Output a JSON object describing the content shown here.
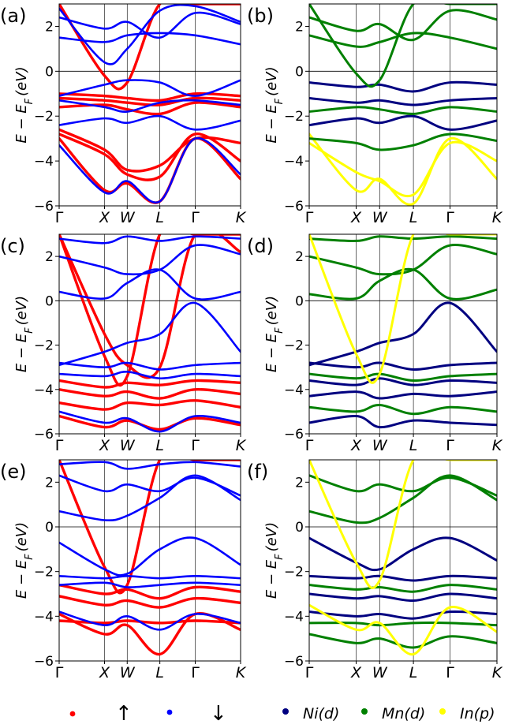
{
  "figure": {
    "legend": [
      {
        "label": "",
        "color": "#ff0000",
        "kind": "marker"
      },
      {
        "label": "↑",
        "color": "",
        "kind": "text"
      },
      {
        "label": "",
        "color": "#0000ff",
        "kind": "marker"
      },
      {
        "label": "↓",
        "color": "",
        "kind": "text"
      },
      {
        "label": "Ni(d)",
        "color": "#000080",
        "kind": "marker"
      },
      {
        "label": "Mn(d)",
        "color": "#008000",
        "kind": "marker"
      },
      {
        "label": "In(p)",
        "color": "#ffff00",
        "kind": "marker"
      }
    ]
  },
  "chart_data": [
    {
      "type": "line",
      "panel": "(a)",
      "style": "spin",
      "ylabel": "E − E_F (eV)",
      "ylim": [
        -6,
        3
      ],
      "yticks": [
        2,
        0,
        -2,
        -4,
        -6
      ],
      "xlim": [
        0,
        1
      ],
      "kpoints": [
        "Γ",
        "X",
        "W",
        "L",
        "Γ",
        "K"
      ],
      "kpos": [
        0.0,
        0.25,
        0.375,
        0.555,
        0.75,
        1.0
      ],
      "series": [
        {
          "name": "up-1",
          "spin": "up",
          "values": [
            -2.6,
            -3.5,
            -4.4,
            -4.2,
            -3.0,
            -3.2
          ]
        },
        {
          "name": "up-2",
          "spin": "up",
          "values": [
            -2.8,
            -3.7,
            -4.6,
            -4.7,
            -2.8,
            -4.0
          ]
        },
        {
          "name": "up-3",
          "spin": "up",
          "values": [
            -1.2,
            -1.3,
            -1.4,
            -1.5,
            -1.2,
            -1.3
          ]
        },
        {
          "name": "up-4",
          "spin": "up",
          "values": [
            -1.0,
            -1.1,
            -1.2,
            -1.3,
            -1.0,
            -1.1
          ]
        },
        {
          "name": "up-5",
          "spin": "up",
          "values": [
            -1.6,
            -1.5,
            -1.7,
            -1.9,
            -1.4,
            -1.6
          ]
        },
        {
          "name": "up-6",
          "spin": "up",
          "values": [
            -3.0,
            -5.3,
            -5.0,
            -5.8,
            -3.0,
            -4.8
          ]
        },
        {
          "name": "up-steep",
          "spin": "up",
          "values": [
            3.0,
            -0.2,
            -0.5,
            3.0,
            3.0,
            3.0
          ]
        },
        {
          "name": "down-1",
          "spin": "down",
          "values": [
            -3.3,
            -5.4,
            -4.9,
            -5.8,
            -3.0,
            -4.6
          ]
        },
        {
          "name": "down-2",
          "spin": "down",
          "values": [
            -2.4,
            -2.1,
            -2.3,
            -2.0,
            -2.6,
            -2.2
          ]
        },
        {
          "name": "down-3",
          "spin": "down",
          "values": [
            -1.3,
            -1.6,
            -1.8,
            -1.4,
            -1.3,
            -1.5
          ]
        },
        {
          "name": "down-4",
          "spin": "down",
          "values": [
            -1.1,
            -0.6,
            -0.4,
            -0.5,
            -1.1,
            -0.4
          ]
        },
        {
          "name": "down-5",
          "spin": "down",
          "values": [
            1.5,
            1.3,
            1.6,
            1.7,
            1.6,
            1.2
          ]
        },
        {
          "name": "down-6",
          "spin": "down",
          "values": [
            2.4,
            1.9,
            2.2,
            1.5,
            2.6,
            2.1
          ]
        },
        {
          "name": "down-7",
          "spin": "down",
          "values": [
            2.8,
            0.4,
            1.0,
            2.7,
            2.9,
            2.2
          ]
        }
      ]
    },
    {
      "type": "line",
      "panel": "(b)",
      "style": "orbital",
      "ylabel": "E − E_F (eV)",
      "ylim": [
        -6,
        3
      ],
      "yticks": [
        2,
        0,
        -2,
        -4,
        -6
      ],
      "xlim": [
        0,
        1
      ],
      "kpoints": [
        "Γ",
        "X",
        "W",
        "L",
        "Γ",
        "K"
      ],
      "kpos": [
        0.0,
        0.25,
        0.375,
        0.555,
        0.75,
        1.0
      ],
      "series": [
        {
          "name": "in-p-1",
          "orbital": "In(p)",
          "values": [
            -2.8,
            -5.3,
            -4.8,
            -5.9,
            -3.0,
            -4.8
          ]
        },
        {
          "name": "in-p-2",
          "orbital": "In(p)",
          "values": [
            -3.2,
            -4.5,
            -4.9,
            -5.5,
            -3.2,
            -4.0
          ]
        },
        {
          "name": "ni-d-1",
          "orbital": "Ni(d)",
          "values": [
            -1.2,
            -1.4,
            -1.3,
            -1.5,
            -1.3,
            -1.2
          ]
        },
        {
          "name": "ni-d-2",
          "orbital": "Ni(d)",
          "values": [
            -0.5,
            -0.7,
            -0.6,
            -0.9,
            -0.5,
            -0.6
          ]
        },
        {
          "name": "ni-d-3",
          "orbital": "Ni(d)",
          "values": [
            -2.4,
            -2.1,
            -2.3,
            -2.0,
            -2.6,
            -2.2
          ]
        },
        {
          "name": "mn-d-1",
          "orbital": "Mn(d)",
          "values": [
            -1.8,
            -1.6,
            -1.7,
            -1.9,
            -1.6,
            -1.8
          ]
        },
        {
          "name": "mn-d-2",
          "orbital": "Mn(d)",
          "values": [
            -3.0,
            -3.2,
            -3.5,
            -3.3,
            -2.8,
            -3.1
          ]
        },
        {
          "name": "mn-d-3",
          "orbital": "Mn(d)",
          "values": [
            1.6,
            1.1,
            1.3,
            1.7,
            1.5,
            1.0
          ]
        },
        {
          "name": "mn-d-4",
          "orbital": "Mn(d)",
          "values": [
            2.4,
            1.8,
            2.1,
            1.4,
            2.7,
            2.3
          ]
        },
        {
          "name": "mn-d-steep",
          "orbital": "Mn(d)",
          "values": [
            3.0,
            -0.1,
            -0.4,
            3.0,
            3.0,
            3.0
          ]
        }
      ]
    },
    {
      "type": "line",
      "panel": "(c)",
      "style": "spin",
      "ylabel": "E − E_F (eV)",
      "ylim": [
        -6,
        3
      ],
      "yticks": [
        2,
        0,
        -2,
        -4,
        -6
      ],
      "xlim": [
        0,
        1
      ],
      "kpoints": [
        "Γ",
        "X",
        "W",
        "L",
        "Γ",
        "K"
      ],
      "kpos": [
        0.0,
        0.25,
        0.375,
        0.555,
        0.75,
        1.0
      ],
      "series": [
        {
          "name": "up-1",
          "spin": "up",
          "values": [
            -4.0,
            -4.3,
            -4.1,
            -4.4,
            -4.0,
            -4.2
          ]
        },
        {
          "name": "up-2",
          "spin": "up",
          "values": [
            -4.6,
            -4.9,
            -4.6,
            -4.7,
            -4.5,
            -4.8
          ]
        },
        {
          "name": "up-3",
          "spin": "up",
          "values": [
            -3.6,
            -3.9,
            -3.7,
            -3.8,
            -3.6,
            -3.7
          ]
        },
        {
          "name": "up-4",
          "spin": "up",
          "values": [
            -5.2,
            -5.7,
            -5.4,
            -5.8,
            -5.3,
            -5.6
          ]
        },
        {
          "name": "up-steep-1",
          "spin": "up",
          "values": [
            3.0,
            -2.5,
            -3.4,
            3.0,
            3.0,
            3.0
          ]
        },
        {
          "name": "up-steep-2",
          "spin": "up",
          "values": [
            3.0,
            -1.5,
            -2.9,
            -3.0,
            3.0,
            2.2
          ]
        },
        {
          "name": "down-1",
          "spin": "down",
          "values": [
            -2.8,
            -3.0,
            -2.8,
            -3.1,
            -2.9,
            -2.8
          ]
        },
        {
          "name": "down-2",
          "spin": "down",
          "values": [
            -3.3,
            -3.4,
            -3.2,
            -3.5,
            -3.3,
            -3.4
          ]
        },
        {
          "name": "down-3",
          "spin": "down",
          "values": [
            -5.0,
            -5.5,
            -5.3,
            -5.9,
            -5.2,
            -5.5
          ]
        },
        {
          "name": "down-4",
          "spin": "down",
          "values": [
            -2.9,
            -2.3,
            -1.9,
            -1.5,
            -0.1,
            -2.3
          ]
        },
        {
          "name": "down-5",
          "spin": "down",
          "values": [
            0.4,
            0.1,
            0.8,
            1.4,
            0.1,
            0.4
          ]
        },
        {
          "name": "down-6",
          "spin": "down",
          "values": [
            2.0,
            1.5,
            1.2,
            1.4,
            2.5,
            2.1
          ]
        },
        {
          "name": "down-7",
          "spin": "down",
          "values": [
            2.8,
            2.6,
            2.9,
            2.7,
            2.9,
            2.8
          ]
        }
      ]
    },
    {
      "type": "line",
      "panel": "(d)",
      "style": "orbital",
      "ylabel": "E − E_F (eV)",
      "ylim": [
        -6,
        3
      ],
      "yticks": [
        2,
        0,
        -2,
        -4,
        -6
      ],
      "xlim": [
        0,
        1
      ],
      "kpoints": [
        "Γ",
        "X",
        "W",
        "L",
        "Γ",
        "K"
      ],
      "kpos": [
        0.0,
        0.25,
        0.375,
        0.555,
        0.75,
        1.0
      ],
      "series": [
        {
          "name": "ni-d-1",
          "orbital": "Ni(d)",
          "values": [
            -2.8,
            -3.0,
            -2.8,
            -3.1,
            -2.9,
            -2.8
          ]
        },
        {
          "name": "ni-d-2",
          "orbital": "Ni(d)",
          "values": [
            -3.6,
            -3.8,
            -3.5,
            -3.8,
            -3.6,
            -3.7
          ]
        },
        {
          "name": "ni-d-3",
          "orbital": "Ni(d)",
          "values": [
            -4.3,
            -4.1,
            -4.4,
            -4.2,
            -4.3,
            -4.1
          ]
        },
        {
          "name": "ni-d-4",
          "orbital": "Ni(d)",
          "values": [
            -2.9,
            -2.3,
            -1.9,
            -1.5,
            -0.1,
            -2.3
          ]
        },
        {
          "name": "ni-d-5",
          "orbital": "Ni(d)",
          "values": [
            -5.5,
            -5.2,
            -5.7,
            -5.4,
            -5.5,
            -5.6
          ]
        },
        {
          "name": "mn-d-1",
          "orbital": "Mn(d)",
          "values": [
            -3.3,
            -3.5,
            -3.3,
            -3.6,
            -3.4,
            -3.3
          ]
        },
        {
          "name": "mn-d-2",
          "orbital": "Mn(d)",
          "values": [
            -4.8,
            -5.0,
            -4.7,
            -5.1,
            -4.8,
            -5.0
          ]
        },
        {
          "name": "mn-d-3",
          "orbital": "Mn(d)",
          "values": [
            0.3,
            0.1,
            0.9,
            1.4,
            0.1,
            0.5
          ]
        },
        {
          "name": "mn-d-4",
          "orbital": "Mn(d)",
          "values": [
            2.0,
            1.5,
            1.2,
            1.4,
            2.5,
            2.1
          ]
        },
        {
          "name": "mn-d-5",
          "orbital": "Mn(d)",
          "values": [
            2.8,
            2.7,
            2.9,
            2.8,
            2.9,
            2.8
          ]
        },
        {
          "name": "in-p-steep",
          "orbital": "In(p)",
          "values": [
            3.0,
            -2.4,
            -3.3,
            3.0,
            3.0,
            3.0
          ]
        }
      ]
    },
    {
      "type": "line",
      "panel": "(e)",
      "style": "spin",
      "ylabel": "E − E_F (eV)",
      "ylim": [
        -6,
        3
      ],
      "yticks": [
        2,
        0,
        -2,
        -4,
        -6
      ],
      "xlim": [
        0,
        1
      ],
      "kpoints": [
        "Γ",
        "X",
        "W",
        "L",
        "Γ",
        "K"
      ],
      "kpos": [
        0.0,
        0.25,
        0.375,
        0.555,
        0.75,
        1.0
      ],
      "series": [
        {
          "name": "up-1",
          "spin": "up",
          "values": [
            -2.6,
            -3.0,
            -2.8,
            -3.2,
            -2.7,
            -2.9
          ]
        },
        {
          "name": "up-2",
          "spin": "up",
          "values": [
            -3.1,
            -3.5,
            -3.3,
            -3.6,
            -3.2,
            -3.4
          ]
        },
        {
          "name": "up-3",
          "spin": "up",
          "values": [
            -4.2,
            -4.3,
            -4.2,
            -4.3,
            -4.2,
            -4.3
          ]
        },
        {
          "name": "up-4",
          "spin": "up",
          "values": [
            -3.9,
            -4.8,
            -4.4,
            -5.7,
            -3.9,
            -4.6
          ]
        },
        {
          "name": "up-steep",
          "spin": "up",
          "values": [
            3.0,
            -1.8,
            -2.6,
            3.0,
            3.0,
            3.0
          ]
        },
        {
          "name": "down-1",
          "spin": "down",
          "values": [
            -2.2,
            -2.3,
            -2.2,
            -2.3,
            -2.2,
            -2.3
          ]
        },
        {
          "name": "down-2",
          "spin": "down",
          "values": [
            -2.6,
            -2.5,
            -2.7,
            -2.6,
            -2.5,
            -2.6
          ]
        },
        {
          "name": "down-3",
          "spin": "down",
          "values": [
            -3.8,
            -4.4,
            -4.0,
            -4.6,
            -3.9,
            -4.3
          ]
        },
        {
          "name": "down-4",
          "spin": "down",
          "values": [
            -0.7,
            -1.9,
            -2.1,
            -1.0,
            -0.5,
            -1.7
          ]
        },
        {
          "name": "down-5",
          "spin": "down",
          "values": [
            0.7,
            0.3,
            0.5,
            1.3,
            2.3,
            1.2
          ]
        },
        {
          "name": "down-6",
          "spin": "down",
          "values": [
            2.3,
            1.6,
            1.9,
            1.6,
            2.2,
            1.4
          ]
        },
        {
          "name": "down-7",
          "spin": "down",
          "values": [
            2.8,
            2.9,
            2.6,
            2.8,
            2.9,
            2.7
          ]
        }
      ]
    },
    {
      "type": "line",
      "panel": "(f)",
      "style": "orbital",
      "ylabel": "E − E_F (eV)",
      "ylim": [
        -6,
        3
      ],
      "yticks": [
        2,
        0,
        -2,
        -4,
        -6
      ],
      "xlim": [
        0,
        1
      ],
      "kpoints": [
        "Γ",
        "X",
        "W",
        "L",
        "Γ",
        "K"
      ],
      "kpos": [
        0.0,
        0.25,
        0.375,
        0.555,
        0.75,
        1.0
      ],
      "series": [
        {
          "name": "ni-d-1",
          "orbital": "Ni(d)",
          "values": [
            -2.2,
            -2.3,
            -2.2,
            -2.4,
            -2.2,
            -2.3
          ]
        },
        {
          "name": "ni-d-2",
          "orbital": "Ni(d)",
          "values": [
            -3.0,
            -3.2,
            -3.1,
            -3.3,
            -3.0,
            -3.2
          ]
        },
        {
          "name": "ni-d-3",
          "orbital": "Ni(d)",
          "values": [
            -0.5,
            -1.6,
            -1.9,
            -1.0,
            -0.5,
            -1.5
          ]
        },
        {
          "name": "ni-d-4",
          "orbital": "Ni(d)",
          "values": [
            -3.8,
            -4.0,
            -3.9,
            -4.1,
            -3.8,
            -3.9
          ]
        },
        {
          "name": "mn-d-1",
          "orbital": "Mn(d)",
          "values": [
            -2.6,
            -2.8,
            -2.7,
            -2.9,
            -2.6,
            -2.8
          ]
        },
        {
          "name": "mn-d-2",
          "orbital": "Mn(d)",
          "values": [
            -4.3,
            -4.3,
            -4.4,
            -4.3,
            -4.3,
            -4.4
          ]
        },
        {
          "name": "mn-d-3",
          "orbital": "Mn(d)",
          "values": [
            0.7,
            0.2,
            0.4,
            1.3,
            2.3,
            1.2
          ]
        },
        {
          "name": "mn-d-4",
          "orbital": "Mn(d)",
          "values": [
            2.3,
            1.6,
            1.9,
            1.6,
            2.2,
            1.4
          ]
        },
        {
          "name": "mn-d-5",
          "orbital": "Mn(d)",
          "values": [
            -4.8,
            -5.2,
            -5.0,
            -5.4,
            -4.9,
            -5.2
          ]
        },
        {
          "name": "in-p-1",
          "orbital": "In(p)",
          "values": [
            -3.5,
            -4.6,
            -4.3,
            -5.7,
            -3.6,
            -4.7
          ]
        },
        {
          "name": "in-p-steep",
          "orbital": "In(p)",
          "values": [
            3.0,
            -1.6,
            -2.4,
            3.0,
            3.0,
            3.0
          ]
        }
      ]
    }
  ]
}
